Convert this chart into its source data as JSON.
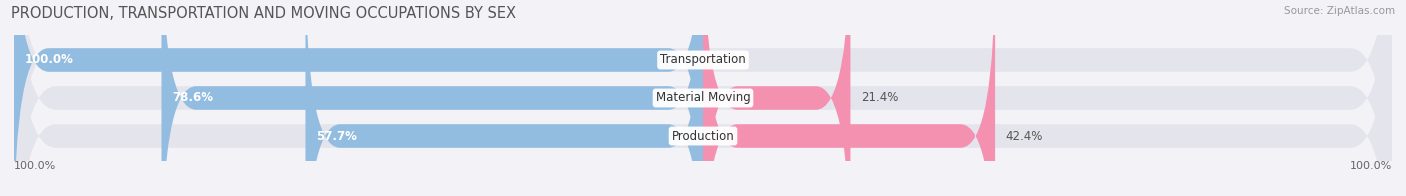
{
  "title": "PRODUCTION, TRANSPORTATION AND MOVING OCCUPATIONS BY SEX",
  "source": "Source: ZipAtlas.com",
  "categories": [
    "Transportation",
    "Material Moving",
    "Production"
  ],
  "male_values": [
    100.0,
    78.6,
    57.7
  ],
  "female_values": [
    0.0,
    21.4,
    42.4
  ],
  "male_color": "#92bce0",
  "female_color": "#f491b0",
  "bar_bg_color": "#e4e4ec",
  "title_fontsize": 10.5,
  "label_fontsize": 8.5,
  "bar_height": 0.62,
  "axis_left_label": "100.0%",
  "axis_right_label": "100.0%",
  "bg_color": "#f2f2f7"
}
